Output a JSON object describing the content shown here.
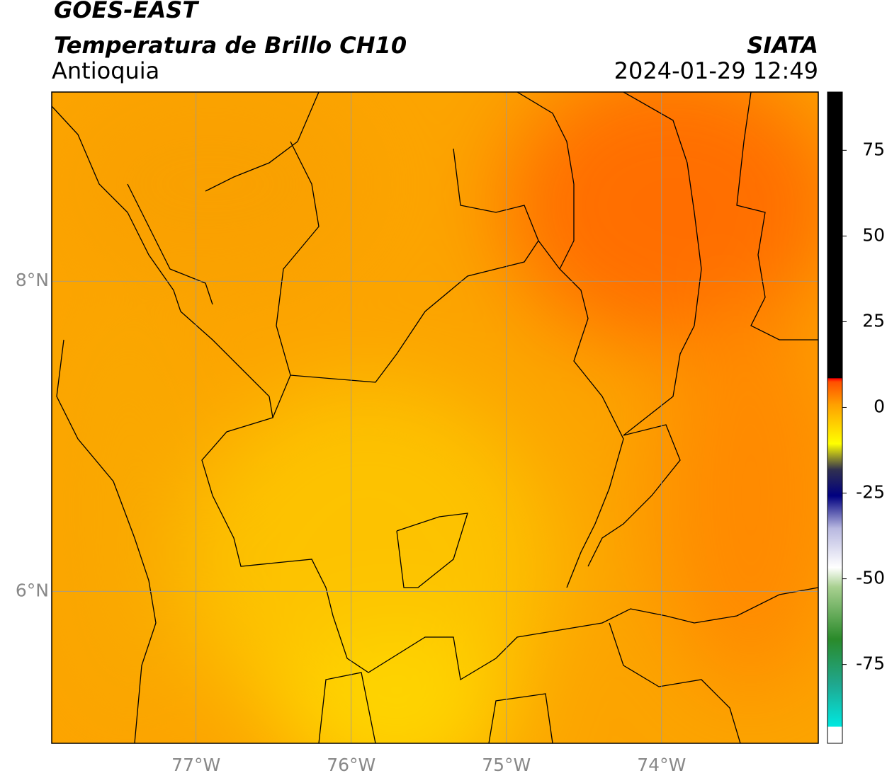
{
  "header": {
    "title": "GOES-EAST",
    "product": "Temperatura de Brillo CH10",
    "region": "Antioquia",
    "source": "SIATA",
    "datetime": "2024-01-29 12:49"
  },
  "map": {
    "xlim": [
      -77.93,
      -72.99
    ],
    "ylim": [
      5.02,
      9.22
    ],
    "xticks": [
      {
        "value": -77,
        "label": "77°W"
      },
      {
        "value": -76,
        "label": "76°W"
      },
      {
        "value": -75,
        "label": "75°W"
      },
      {
        "value": -74,
        "label": "74°W"
      }
    ],
    "yticks": [
      {
        "value": 6,
        "label": "6°N"
      },
      {
        "value": 8,
        "label": "8°N"
      }
    ],
    "grid": true
  },
  "colorbar": {
    "lim": [
      -98,
      92
    ],
    "ticks": [
      -75,
      -50,
      -25,
      0,
      25,
      50,
      75
    ]
  }
}
